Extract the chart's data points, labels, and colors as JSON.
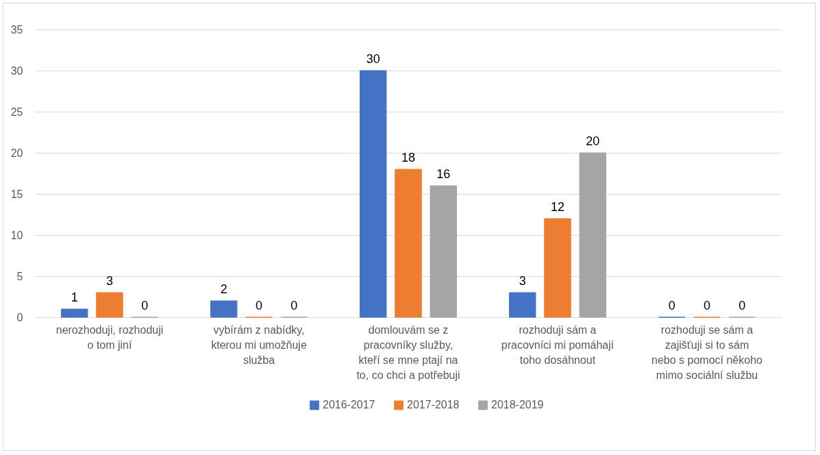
{
  "chart_data": {
    "type": "bar",
    "categories": [
      "nerozhoduji, rozhoduji o tom jiní",
      "vybírám z nabídky, kterou mi umožňuje služba",
      "domlouvám se z pracovníky služby, kteří se mne ptají na to, co chci a potřebuji",
      "rozhoduji sám a pracovníci mi pomáhají toho dosáhnout",
      "rozhoduji se sám a zajišťuji si to sám nebo s pomocí někoho mimo sociální službu"
    ],
    "series": [
      {
        "name": "2016-2017",
        "color": "#4472c4",
        "values": [
          1,
          2,
          30,
          3,
          0
        ]
      },
      {
        "name": "2017-2018",
        "color": "#ed7d31",
        "values": [
          3,
          0,
          18,
          12,
          0
        ]
      },
      {
        "name": "2018-2019",
        "color": "#a5a5a5",
        "values": [
          0,
          0,
          16,
          20,
          0
        ]
      }
    ],
    "ylim": [
      0,
      35
    ],
    "yticks": [
      0,
      5,
      10,
      15,
      20,
      25,
      30,
      35
    ],
    "grid": "y",
    "legend": "bottom",
    "data_labels": true
  }
}
